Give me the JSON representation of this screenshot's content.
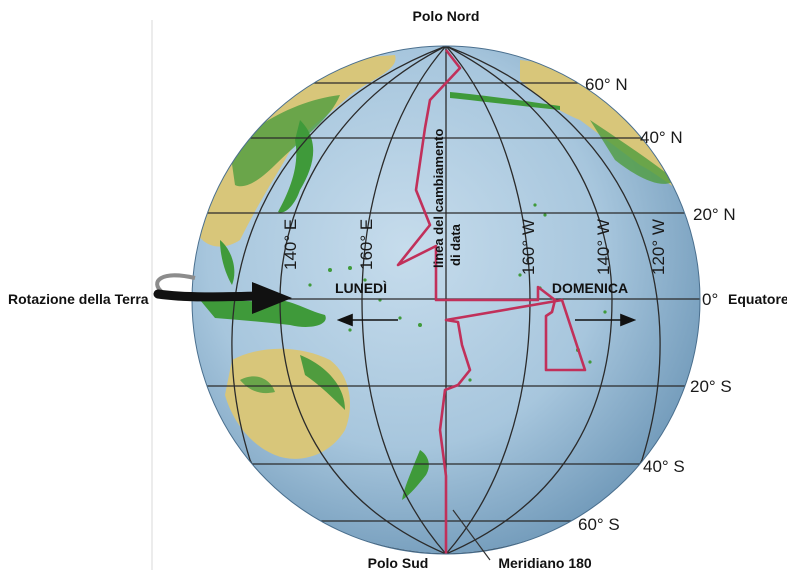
{
  "labels": {
    "north_pole": "Polo Nord",
    "south_pole": "Polo Sud",
    "meridian": "Meridiano 180",
    "equator": "Equatore",
    "rotation": "Rotazione della Terra",
    "date_line_1": "linea del cambiamento",
    "date_line_2": "di data",
    "monday": "LUNEDÌ",
    "sunday": "DOMENICA"
  },
  "parallels": {
    "n60": "60° N",
    "n40": "40° N",
    "n20": "20° N",
    "eq": "0°",
    "s20": "20° S",
    "s40": "40° S",
    "s60": "60° S"
  },
  "meridians": {
    "e140": "140° E",
    "e160": "160° E",
    "w160": "160° W",
    "w140": "140° W",
    "w120": "120° W"
  },
  "colors": {
    "ocean": "#a9c9df",
    "ocean_edge": "#6d95b5",
    "land": "#d9c87a",
    "land_green": "#3f9a3a",
    "date_line": "#c1305a",
    "grid": "#2b2b2b"
  }
}
